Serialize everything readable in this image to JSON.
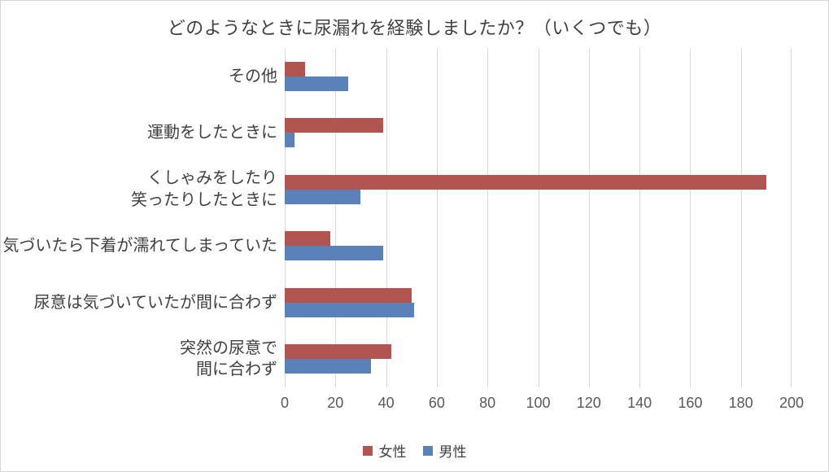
{
  "title": "どのようなときに尿漏れを経験しましたか？（いくつでも）",
  "colors": {
    "female_series": "#B25551",
    "male_series": "#5B82B8",
    "gridline": "#D9D9D9",
    "title_text": "#404040",
    "axis_text": "#595959"
  },
  "chart_data": {
    "type": "bar",
    "orientation": "horizontal",
    "title": "どのようなときに尿漏れを経験しましたか？（いくつでも）",
    "categories": [
      "その他",
      "運動をしたときに",
      "くしゃみをしたり\n笑ったりしたときに",
      "気づいたら下着が濡れてしまっていた",
      "尿意は気づいていたが間に合わず",
      "突然の尿意で\n間に合わず"
    ],
    "categories_order": "top-to-bottom",
    "series": [
      {
        "name": "女性",
        "color": "#B25551",
        "values": [
          8,
          39,
          190,
          18,
          50,
          42
        ]
      },
      {
        "name": "男性",
        "color": "#5B82B8",
        "values": [
          25,
          4,
          30,
          39,
          51,
          34
        ]
      }
    ],
    "xlabel": "",
    "ylabel": "",
    "xlim": [
      0,
      200
    ],
    "xticks": [
      0,
      20,
      40,
      60,
      80,
      100,
      120,
      140,
      160,
      180,
      200
    ],
    "grid": true,
    "legend_position": "bottom"
  },
  "legend": {
    "items": [
      {
        "label": "女性",
        "color": "#B25551"
      },
      {
        "label": "男性",
        "color": "#5B82B8"
      }
    ]
  }
}
